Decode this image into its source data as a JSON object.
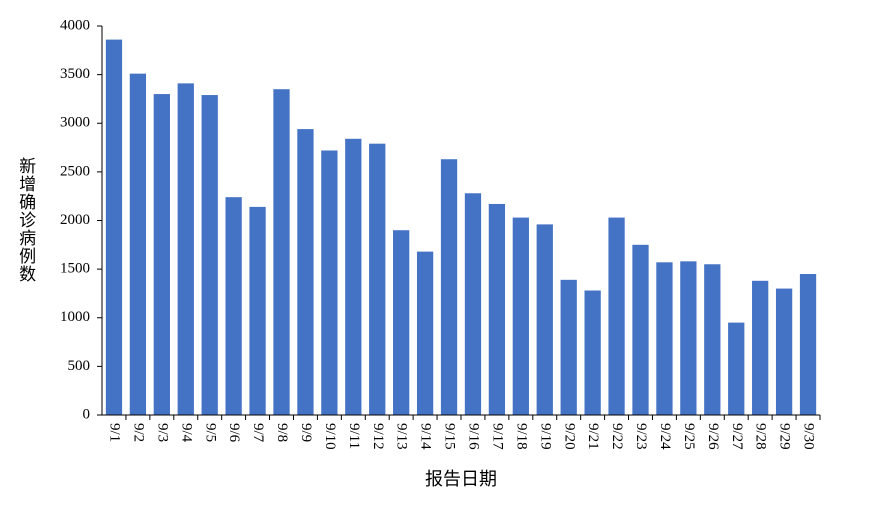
{
  "chart_data": {
    "type": "bar",
    "y_label": "新增确诊病例数",
    "x_label": "报告日期",
    "categories": [
      "9/1",
      "9/2",
      "9/3",
      "9/4",
      "9/5",
      "9/6",
      "9/7",
      "9/8",
      "9/9",
      "9/10",
      "9/11",
      "9/12",
      "9/13",
      "9/14",
      "9/15",
      "9/16",
      "9/17",
      "9/18",
      "9/19",
      "9/20",
      "9/21",
      "9/22",
      "9/23",
      "9/24",
      "9/25",
      "9/26",
      "9/27",
      "9/28",
      "9/29",
      "9/30"
    ],
    "values": [
      3860,
      3510,
      3300,
      3410,
      3290,
      2240,
      2140,
      3350,
      2940,
      2720,
      2840,
      2790,
      1900,
      1680,
      2630,
      2280,
      2170,
      2030,
      1960,
      1390,
      1280,
      2030,
      1750,
      1570,
      1580,
      1550,
      950,
      1380,
      1300,
      1450
    ],
    "color": "#4472c4",
    "ylim": [
      0,
      4000
    ],
    "yticks": [
      0,
      500,
      1000,
      1500,
      2000,
      2500,
      3000,
      3500,
      4000
    ],
    "grid": false
  }
}
